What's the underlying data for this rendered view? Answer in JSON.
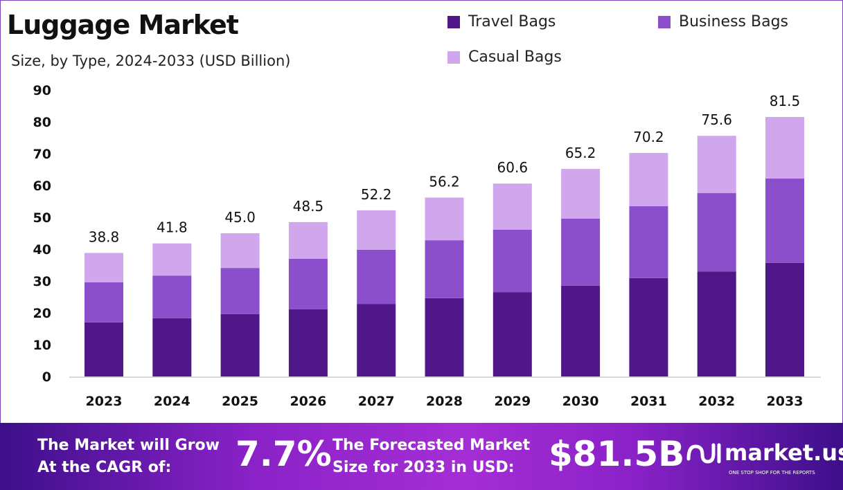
{
  "chart_data": {
    "type": "bar",
    "stacked": true,
    "title": "Luggage Market",
    "subtitle": "Size, by Type, 2024-2033 (USD Billion)",
    "categories": [
      "2023",
      "2024",
      "2025",
      "2026",
      "2027",
      "2028",
      "2029",
      "2030",
      "2031",
      "2032",
      "2033"
    ],
    "series": [
      {
        "name": "Travel Bags",
        "color": "#4f1787",
        "values": [
          17.0,
          18.3,
          19.6,
          21.1,
          22.8,
          24.6,
          26.5,
          28.5,
          30.9,
          33.0,
          35.7
        ]
      },
      {
        "name": "Business Bags",
        "color": "#8b4fcc",
        "values": [
          12.6,
          13.4,
          14.5,
          15.9,
          17.0,
          18.2,
          19.6,
          21.1,
          22.6,
          24.6,
          26.5
        ]
      },
      {
        "name": "Casual Bags",
        "color": "#d0a6ec",
        "values": [
          9.2,
          10.1,
          10.9,
          11.5,
          12.4,
          13.4,
          14.5,
          15.6,
          16.7,
          18.0,
          19.3
        ]
      }
    ],
    "totals": [
      "38.8",
      "41.8",
      "45.0",
      "48.5",
      "52.2",
      "56.2",
      "60.6",
      "65.2",
      "70.2",
      "75.6",
      "81.5"
    ],
    "ylim": [
      0,
      90
    ],
    "yticks": [
      "0",
      "10",
      "20",
      "30",
      "40",
      "50",
      "60",
      "70",
      "80",
      "90"
    ],
    "grid": false,
    "legend": "top-right"
  },
  "banner": {
    "cagr_label_1": "The Market will Grow",
    "cagr_label_2": "At the CAGR of:",
    "cagr_value": "7.7%",
    "forecast_label_1": "The Forecasted Market",
    "forecast_label_2": "Size for 2033 in USD:",
    "forecast_value": "$81.5B",
    "logo_name": "market.us",
    "logo_tagline": "ONE STOP SHOP FOR THE REPORTS"
  }
}
